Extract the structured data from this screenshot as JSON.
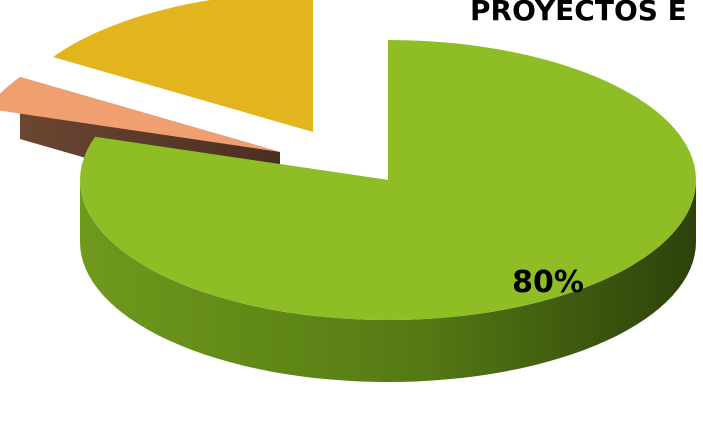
{
  "chart_data": {
    "type": "pie",
    "style": "3d-exploded",
    "title": "PROYECTOS E",
    "slices": [
      {
        "value": 80,
        "color": "#8fbd26",
        "data_label": "80%"
      },
      {
        "value": 4,
        "color": "#f0a070",
        "data_label": ""
      },
      {
        "value": 16,
        "color": "#e2b41e",
        "data_label": ""
      }
    ],
    "legend": "none"
  }
}
